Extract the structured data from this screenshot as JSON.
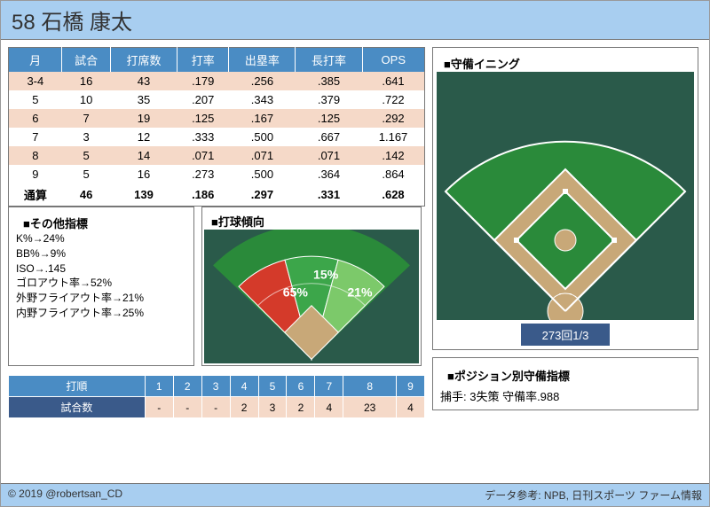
{
  "player": {
    "number": "58",
    "name": "石橋 康太"
  },
  "stats_table": {
    "columns": [
      "月",
      "試合",
      "打席数",
      "打率",
      "出塁率",
      "長打率",
      "OPS"
    ],
    "rows": [
      [
        "3-4",
        "16",
        "43",
        ".179",
        ".256",
        ".385",
        ".641"
      ],
      [
        "5",
        "10",
        "35",
        ".207",
        ".343",
        ".379",
        ".722"
      ],
      [
        "6",
        "7",
        "19",
        ".125",
        ".167",
        ".125",
        ".292"
      ],
      [
        "7",
        "3",
        "12",
        ".333",
        ".500",
        ".667",
        "1.167"
      ],
      [
        "8",
        "5",
        "14",
        ".071",
        ".071",
        ".071",
        ".142"
      ],
      [
        "9",
        "5",
        "16",
        ".273",
        ".500",
        ".364",
        ".864"
      ]
    ],
    "total": [
      "通算",
      "46",
      "139",
      ".186",
      ".297",
      ".331",
      ".628"
    ],
    "header_bg": "#4a8cc4",
    "odd_bg": "#f5d9c8"
  },
  "other_metrics": {
    "title": "■その他指標",
    "lines": [
      "K%→24%",
      "BB%→9%",
      "ISO→.145",
      "ゴロアウト率→52%",
      "外野フライアウト率→21%",
      "内野フライアウト率→25%"
    ]
  },
  "spray": {
    "title": "■打球傾向",
    "zones": [
      {
        "label": "65%",
        "color": "#d43a2a",
        "angle_start": 135,
        "angle_end": 105
      },
      {
        "label": "15%",
        "color": "#3ca64a",
        "angle_start": 105,
        "angle_end": 75
      },
      {
        "label": "21%",
        "color": "#7cc96a",
        "angle_start": 75,
        "angle_end": 45
      }
    ],
    "grass_color": "#2a8a3a",
    "dirt_color": "#c8a878",
    "bg": "#2a5a4a"
  },
  "batting_order": {
    "header_label": "打順",
    "row_label": "試合数",
    "cols": [
      "1",
      "2",
      "3",
      "4",
      "5",
      "6",
      "7",
      "8",
      "9"
    ],
    "values": [
      "-",
      "-",
      "-",
      "2",
      "3",
      "2",
      "4",
      "23",
      "4"
    ]
  },
  "defense": {
    "title": "■守備イニング",
    "innings": "273回1/3",
    "grass_color": "#2a8a3a",
    "dirt_color": "#c8a878",
    "line_color": "#ffffff"
  },
  "position_metrics": {
    "title": "■ポジション別守備指標",
    "line": "捕手: 3失策 守備率.988"
  },
  "footer": {
    "left": "© 2019 @robertsan_CD",
    "right": "データ参考: NPB, 日刊スポーツ ファーム情報"
  }
}
